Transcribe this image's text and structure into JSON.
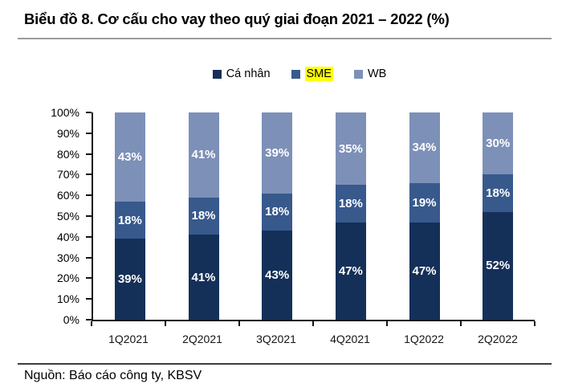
{
  "title": "Biểu đồ 8. Cơ cấu cho vay theo quý giai đoạn 2021 – 2022 (%)",
  "source": "Nguồn: Báo cáo công ty, KBSV",
  "colors": {
    "ca_nhan": "#153058",
    "sme": "#38598C",
    "wb": "#7D90B7",
    "sme_highlight": "#FFFF00",
    "axis": "#141414"
  },
  "legend": {
    "items": [
      {
        "label": "Cá nhân",
        "swatch_color": "#153058",
        "highlight_color": null
      },
      {
        "label": "SME",
        "swatch_color": "#38598C",
        "highlight_color": "#FFFF00"
      },
      {
        "label": "WB",
        "swatch_color": "#7D90B7",
        "highlight_color": null
      }
    ]
  },
  "chart_data": {
    "type": "bar",
    "stacked": true,
    "stack_total": 100,
    "title": "Biểu đồ 8. Cơ cấu cho vay theo quý giai đoạn 2021 – 2022 (%)",
    "categories": [
      "1Q2021",
      "2Q2021",
      "3Q2021",
      "4Q2021",
      "1Q2022",
      "2Q2022"
    ],
    "series": [
      {
        "name": "Cá nhân",
        "color": "#153058",
        "values": [
          39,
          41,
          43,
          47,
          47,
          52
        ]
      },
      {
        "name": "SME",
        "color": "#38598C",
        "values": [
          18,
          18,
          18,
          18,
          19,
          18
        ]
      },
      {
        "name": "WB",
        "color": "#7D90B7",
        "values": [
          43,
          41,
          39,
          35,
          34,
          30
        ]
      }
    ],
    "y_axis": {
      "min": 0,
      "max": 100,
      "step": 10,
      "tick_suffix": "%"
    },
    "data_label_format": "{v}%",
    "data_label_color": "#ffffff",
    "legend_position": "top",
    "grid": false
  }
}
